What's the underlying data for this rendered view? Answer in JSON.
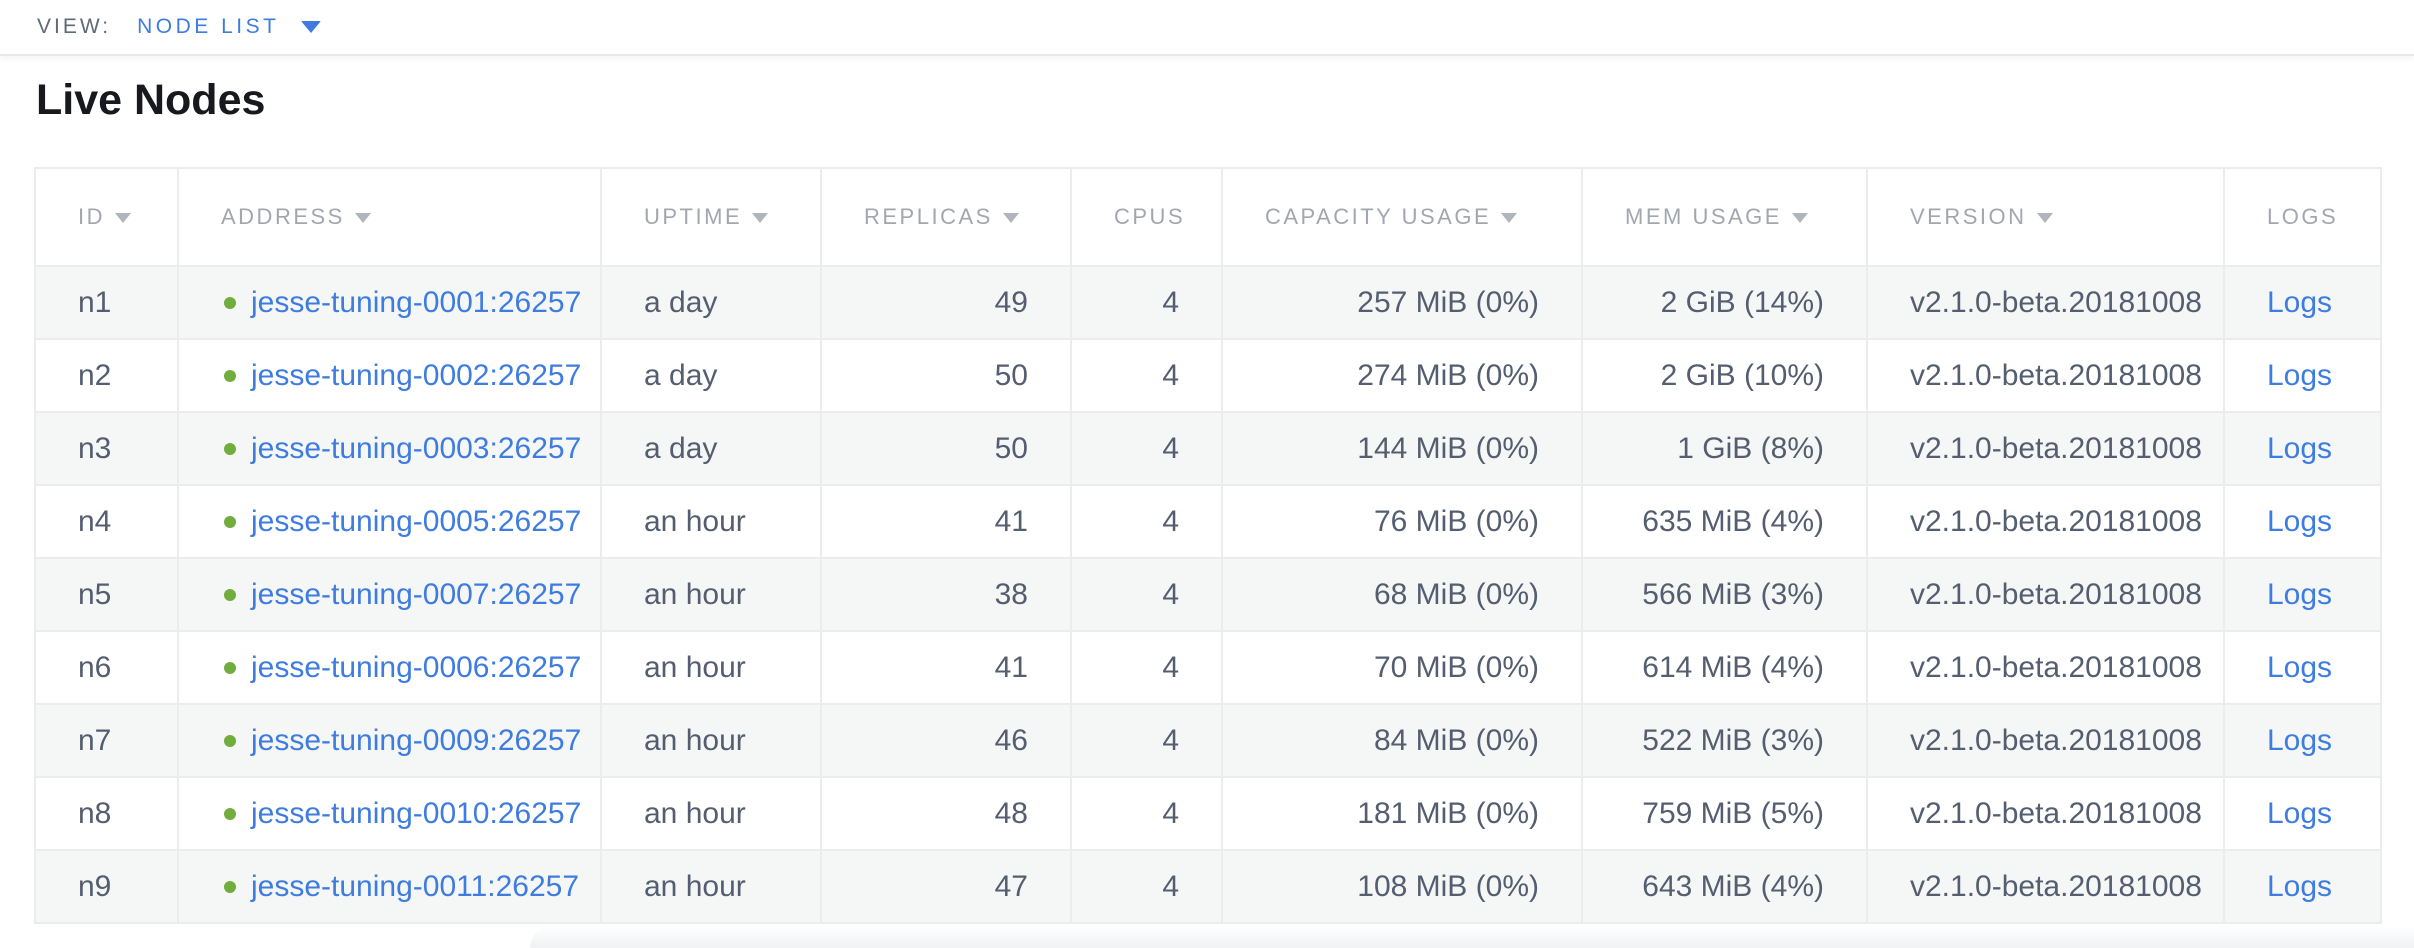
{
  "view_bar": {
    "label": "VIEW:",
    "dropdown_value": "NODE LIST"
  },
  "page": {
    "title": "Live Nodes"
  },
  "colors": {
    "link_blue": "#3e7ce0",
    "live_node_dot_green": "#70ad3c",
    "header_text_gray": "#a2a7ae",
    "body_text_slate": "#545e70",
    "row_stripe": "#f5f6f6",
    "cell_border": "#ececed"
  },
  "table": {
    "columns": [
      {
        "key": "id",
        "label": "ID",
        "sortable": true,
        "align": "left"
      },
      {
        "key": "address",
        "label": "ADDRESS",
        "sortable": true,
        "align": "left"
      },
      {
        "key": "uptime",
        "label": "UPTIME",
        "sortable": true,
        "align": "left"
      },
      {
        "key": "replicas",
        "label": "REPLICAS",
        "sortable": true,
        "align": "right"
      },
      {
        "key": "cpus",
        "label": "CPUS",
        "sortable": false,
        "align": "right"
      },
      {
        "key": "capacity",
        "label": "CAPACITY USAGE",
        "sortable": true,
        "align": "right"
      },
      {
        "key": "mem",
        "label": "MEM USAGE",
        "sortable": true,
        "align": "right"
      },
      {
        "key": "version",
        "label": "VERSION",
        "sortable": true,
        "align": "left"
      },
      {
        "key": "logs",
        "label": "LOGS",
        "sortable": false,
        "align": "left"
      }
    ],
    "rows": [
      {
        "id": "n1",
        "address": "jesse-tuning-0001:26257",
        "uptime": "a day",
        "replicas": "49",
        "cpus": "4",
        "capacity": "257 MiB (0%)",
        "mem": "2 GiB (14%)",
        "version": "v2.1.0-beta.20181008",
        "logs": "Logs"
      },
      {
        "id": "n2",
        "address": "jesse-tuning-0002:26257",
        "uptime": "a day",
        "replicas": "50",
        "cpus": "4",
        "capacity": "274 MiB (0%)",
        "mem": "2 GiB (10%)",
        "version": "v2.1.0-beta.20181008",
        "logs": "Logs"
      },
      {
        "id": "n3",
        "address": "jesse-tuning-0003:26257",
        "uptime": "a day",
        "replicas": "50",
        "cpus": "4",
        "capacity": "144 MiB (0%)",
        "mem": "1 GiB (8%)",
        "version": "v2.1.0-beta.20181008",
        "logs": "Logs"
      },
      {
        "id": "n4",
        "address": "jesse-tuning-0005:26257",
        "uptime": "an hour",
        "replicas": "41",
        "cpus": "4",
        "capacity": "76 MiB (0%)",
        "mem": "635 MiB (4%)",
        "version": "v2.1.0-beta.20181008",
        "logs": "Logs"
      },
      {
        "id": "n5",
        "address": "jesse-tuning-0007:26257",
        "uptime": "an hour",
        "replicas": "38",
        "cpus": "4",
        "capacity": "68 MiB (0%)",
        "mem": "566 MiB (3%)",
        "version": "v2.1.0-beta.20181008",
        "logs": "Logs"
      },
      {
        "id": "n6",
        "address": "jesse-tuning-0006:26257",
        "uptime": "an hour",
        "replicas": "41",
        "cpus": "4",
        "capacity": "70 MiB (0%)",
        "mem": "614 MiB (4%)",
        "version": "v2.1.0-beta.20181008",
        "logs": "Logs"
      },
      {
        "id": "n7",
        "address": "jesse-tuning-0009:26257",
        "uptime": "an hour",
        "replicas": "46",
        "cpus": "4",
        "capacity": "84 MiB (0%)",
        "mem": "522 MiB (3%)",
        "version": "v2.1.0-beta.20181008",
        "logs": "Logs"
      },
      {
        "id": "n8",
        "address": "jesse-tuning-0010:26257",
        "uptime": "an hour",
        "replicas": "48",
        "cpus": "4",
        "capacity": "181 MiB (0%)",
        "mem": "759 MiB (5%)",
        "version": "v2.1.0-beta.20181008",
        "logs": "Logs"
      },
      {
        "id": "n9",
        "address": "jesse-tuning-0011:26257",
        "uptime": "an hour",
        "replicas": "47",
        "cpus": "4",
        "capacity": "108 MiB (0%)",
        "mem": "643 MiB (4%)",
        "version": "v2.1.0-beta.20181008",
        "logs": "Logs"
      }
    ]
  }
}
